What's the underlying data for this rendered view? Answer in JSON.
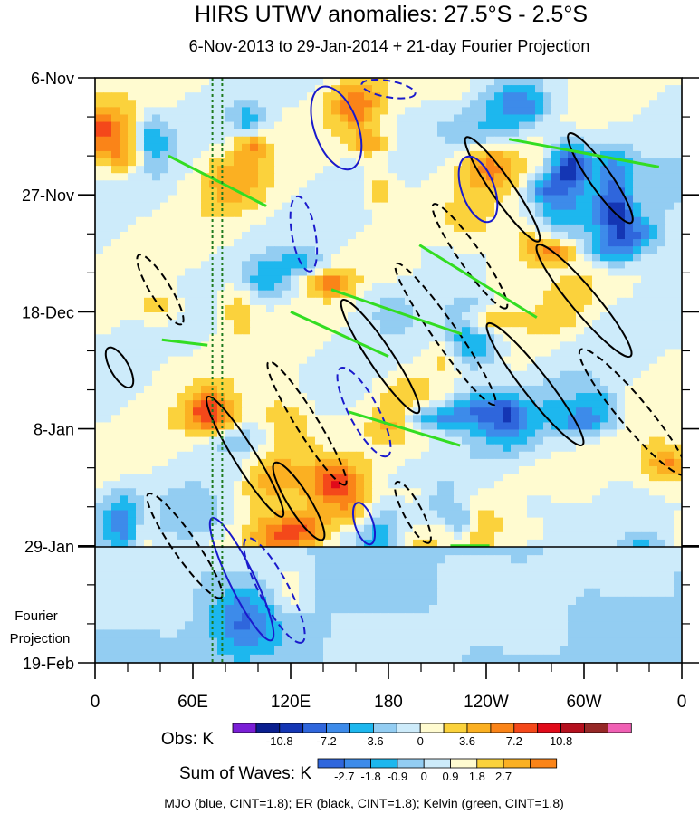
{
  "chart_data": {
    "type": "heatmap",
    "title": "HIRS UTWV anomalies: 27.5°S - 2.5°S",
    "subtitle": "6-Nov-2013 to 29-Jan-2014 + 21-day Fourier Projection",
    "x_tick_labels": [
      "0",
      "60E",
      "120E",
      "180",
      "120W",
      "60W",
      "0"
    ],
    "x_range_deg_east": [
      0,
      360
    ],
    "y_tick_labels": [
      "6-Nov",
      "27-Nov",
      "18-Dec",
      "8-Jan",
      "29-Jan",
      "19-Feb"
    ],
    "y_range_days_from_start": [
      0,
      105
    ],
    "observation_end_label": "29-Jan",
    "projection_label_line1": "Fourier",
    "projection_label_line2": "Projection",
    "reference_longitudes_deg": [
      72,
      78
    ],
    "obs_colorbar": {
      "label": "Obs: K",
      "tick_labels": [
        "-10.8",
        "-7.2",
        "-3.6",
        "0",
        "3.6",
        "7.2",
        "10.8"
      ],
      "colors": [
        "#7a1fd6",
        "#0a1f8f",
        "#1436b4",
        "#2f66dc",
        "#3d8bea",
        "#1db7ee",
        "#93cdf2",
        "#cdebfa",
        "#fffbd0",
        "#fbd23c",
        "#fbb022",
        "#fa8418",
        "#f4481a",
        "#e10a1a",
        "#b4101e",
        "#962827",
        "#f060b4"
      ]
    },
    "waves_colorbar": {
      "label": "Sum of Waves: K",
      "tick_labels": [
        "-2.7",
        "-1.8",
        "-0.9",
        "0",
        "0.9",
        "1.8",
        "2.7"
      ],
      "colors": [
        "#2f66dc",
        "#3d8bea",
        "#1db7ee",
        "#93cdf2",
        "#cdebfa",
        "#fffbd0",
        "#fbd23c",
        "#fbb022",
        "#fa8418"
      ]
    },
    "footer": "MJO (blue, CINT=1.8); ER (black, CINT=1.8); Kelvin (green, CINT=1.8)",
    "series": [
      {
        "name": "MJO",
        "color": "#1a1acc",
        "contour_interval": 1.8
      },
      {
        "name": "ER",
        "color": "#000000",
        "contour_interval": 1.8
      },
      {
        "name": "Kelvin",
        "color": "#33dd22",
        "contour_interval": 1.8
      }
    ]
  }
}
